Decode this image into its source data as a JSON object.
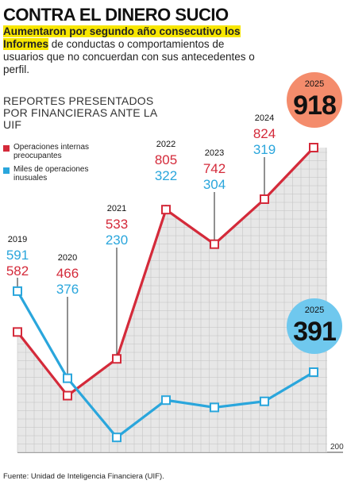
{
  "headline": "CONTRA EL DINERO SUCIO",
  "subhead": {
    "highlight": "Aumentaron por segundo año consecutivo los Informes",
    "rest": " de conductas o comportamientos de usuarios que no concuerdan con sus antecedentes o perfil."
  },
  "section_title": "REPORTES PRESENTADOS POR FINANCIERAS ANTE LA UIF",
  "source": "Fuente: Unidad de Inteligencia Financiera (UIF).",
  "colors": {
    "red": "#d42a3a",
    "blue": "#2aa6dc",
    "fill": "#e3e3e3",
    "grid": "#c4c4c4",
    "salmon": "#f48c6c",
    "sky": "#6fc8ee"
  },
  "chart_data": {
    "type": "line",
    "x": [
      "2019",
      "2020",
      "2021",
      "2022",
      "2023",
      "2024",
      "2025"
    ],
    "series": [
      {
        "name": "Operaciones internas preocupantes",
        "color": "#d42a3a",
        "values": [
          582,
          466,
          533,
          805,
          742,
          824,
          918
        ]
      },
      {
        "name": "Miles de operaciones inusuales",
        "color": "#2aa6dc",
        "values": [
          591,
          376,
          230,
          322,
          304,
          319,
          391
        ]
      }
    ],
    "ylim": [
      200,
      920
    ],
    "y_tick_label": "200",
    "grid": true,
    "legend_position": "top-left",
    "callouts": [
      {
        "year": "2025",
        "value": "918",
        "color": "#f48c6c"
      },
      {
        "year": "2025",
        "value": "391",
        "color": "#6fc8ee"
      }
    ]
  }
}
